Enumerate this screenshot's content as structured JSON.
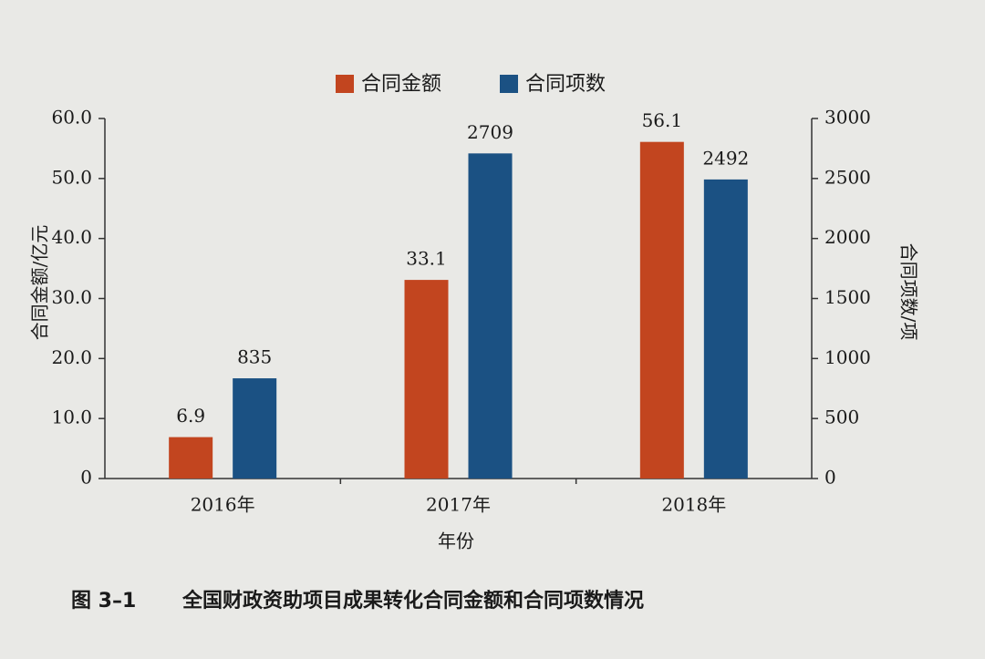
{
  "chart_data": {
    "type": "bar",
    "figure_label": "图 3–1",
    "title": "全国财政资助项目成果转化合同金额和合同项数情况",
    "x_label": "年份",
    "y_label": "合同金额/亿元",
    "y2_label": "合同项数/项",
    "categories": [
      "2016年",
      "2017年",
      "2018年"
    ],
    "series": [
      {
        "name": "合同金额",
        "color": "#c2451f",
        "values": [
          6.9,
          33.1,
          56.1
        ]
      },
      {
        "name": "合同项数",
        "color": "#1b5183",
        "axis": "y2",
        "values": [
          835,
          2709,
          2492
        ]
      }
    ],
    "ylim": [
      0,
      60
    ],
    "yticks": [
      0,
      {
        "value": 10,
        "label": "10.0"
      },
      {
        "value": 20,
        "label": "20.0"
      },
      {
        "value": 30,
        "label": "30.0"
      },
      {
        "value": 40,
        "label": "40.0"
      },
      {
        "value": 50,
        "label": "50.0"
      },
      {
        "value": 60,
        "label": "60.0"
      }
    ],
    "y2lim": [
      0,
      3000
    ],
    "y2ticks": [
      0,
      500,
      1000,
      1500,
      2000,
      2500,
      3000
    ],
    "legend": "top",
    "grid": false
  }
}
